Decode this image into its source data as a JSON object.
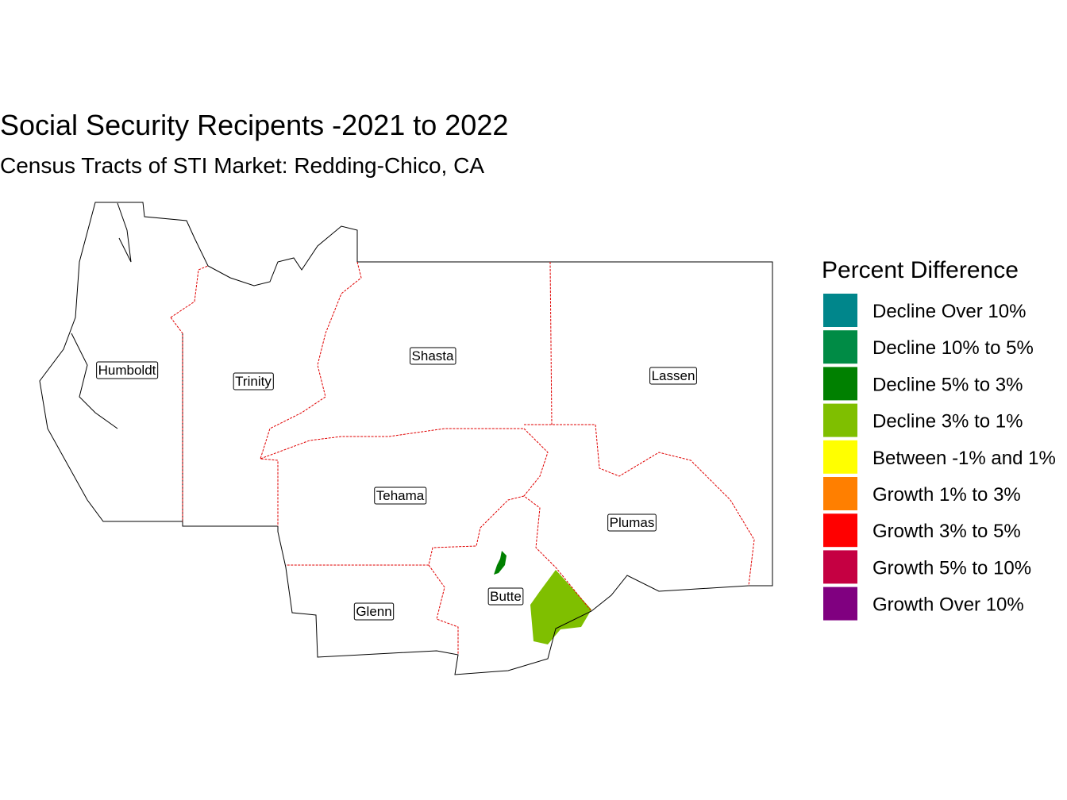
{
  "title": "Social Security Recipents -2021 to 2022",
  "subtitle": "Census Tracts of STI Market: Redding-Chico, CA",
  "legend": {
    "title": "Percent Difference",
    "items": [
      {
        "label": "Decline Over 10%",
        "color": "#00868B"
      },
      {
        "label": "Decline 10% to 5%",
        "color": "#008B45"
      },
      {
        "label": "Decline 5% to 3%",
        "color": "#008000"
      },
      {
        "label": "Decline 3% to 1%",
        "color": "#7FBF00"
      },
      {
        "label": "Between -1% and 1%",
        "color": "#FFFF00"
      },
      {
        "label": "Growth 1% to 3%",
        "color": "#FF7F00"
      },
      {
        "label": "Growth 3% to 5%",
        "color": "#FF0000"
      },
      {
        "label": "Growth 5% to 10%",
        "color": "#C50042"
      },
      {
        "label": "Growth Over 10%",
        "color": "#800080"
      }
    ]
  },
  "counties": [
    {
      "name": "Humboldt"
    },
    {
      "name": "Trinity"
    },
    {
      "name": "Shasta"
    },
    {
      "name": "Lassen"
    },
    {
      "name": "Tehama"
    },
    {
      "name": "Plumas"
    },
    {
      "name": "Butte"
    },
    {
      "name": "Glenn"
    }
  ]
}
